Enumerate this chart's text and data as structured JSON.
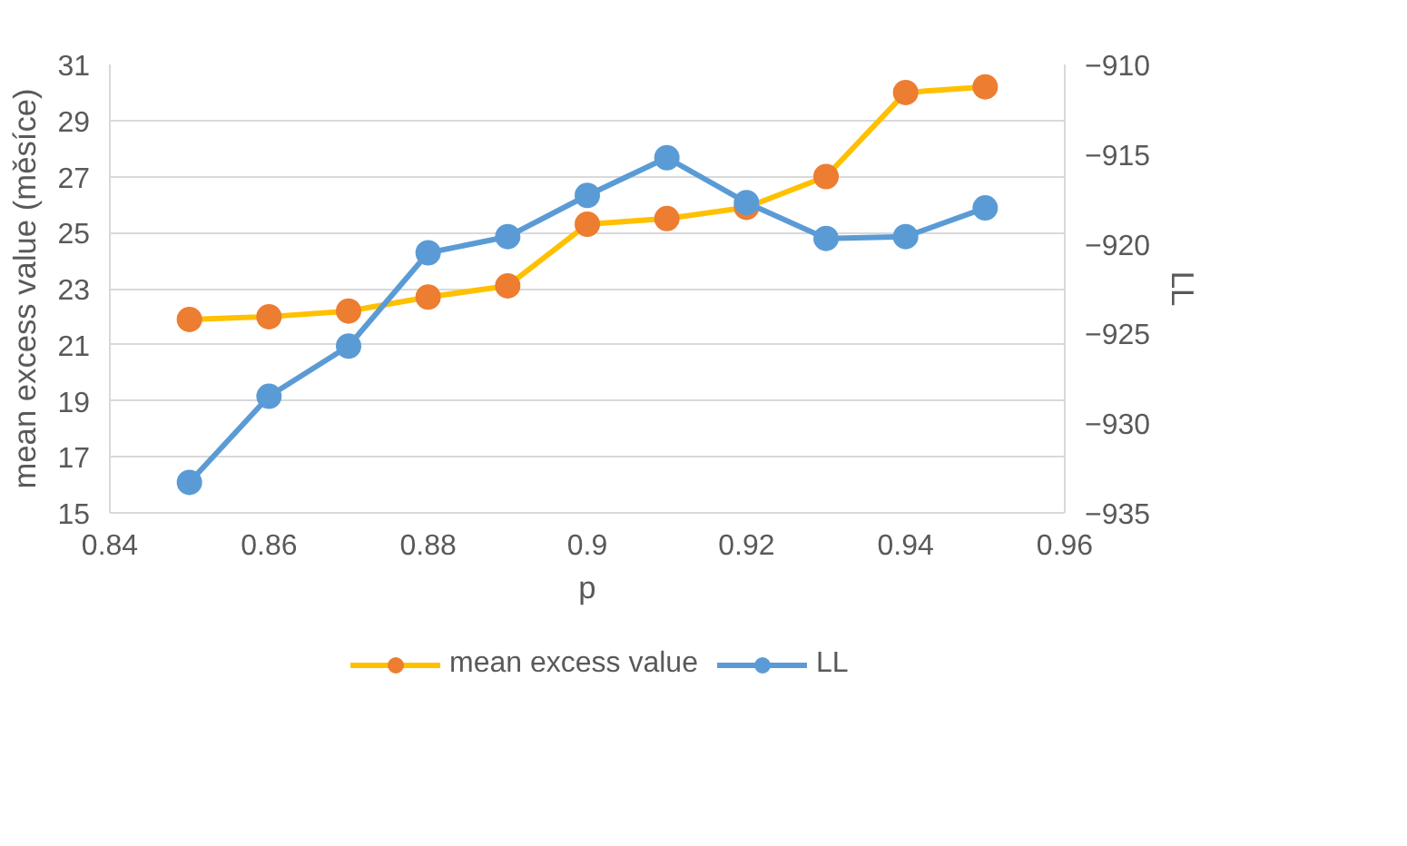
{
  "chart_data": {
    "type": "line",
    "xlabel": "p",
    "ylabel": "mean excess value (měsíce)",
    "y2label": "LL",
    "x": [
      0.85,
      0.86,
      0.87,
      0.88,
      0.89,
      0.9,
      0.91,
      0.92,
      0.93,
      0.94,
      0.95
    ],
    "series": [
      {
        "name": "mean excess value",
        "color": "#ffc000",
        "colors": [
          "#ed7d31",
          "#ed7d31",
          "#ed7d31",
          "#ed7d31",
          "#ed7d31",
          "#ed7d31",
          "#ed7d31",
          "#ed7d31",
          "#ed7d31",
          "#ed7d31",
          "#ed7d31"
        ],
        "values": [
          21.9,
          22.0,
          22.2,
          22.7,
          23.1,
          25.3,
          25.5,
          25.9,
          27.0,
          30.0,
          30.2
        ]
      },
      {
        "name": "LL",
        "color": "#5b9bd5",
        "axis": "y2",
        "values": [
          -933.3,
          -928.5,
          -925.7,
          -920.5,
          -919.6,
          -917.3,
          -915.2,
          -917.7,
          -919.7,
          -919.6,
          -918.0
        ]
      }
    ],
    "xlim": [
      0.84,
      0.96
    ],
    "xticks": [
      0.84,
      0.86,
      0.88,
      0.9,
      0.92,
      0.94,
      0.96
    ],
    "ylim": [
      15,
      31
    ],
    "yticks": [
      15,
      17,
      19,
      21,
      23,
      25,
      27,
      29,
      31
    ],
    "y2lim": [
      -935,
      -910
    ],
    "y2ticks": [
      -935,
      -930,
      -925,
      -920,
      -915,
      -910
    ],
    "grid": "y",
    "legend": "bottom",
    "marker": "circle",
    "line_style": "solid"
  }
}
